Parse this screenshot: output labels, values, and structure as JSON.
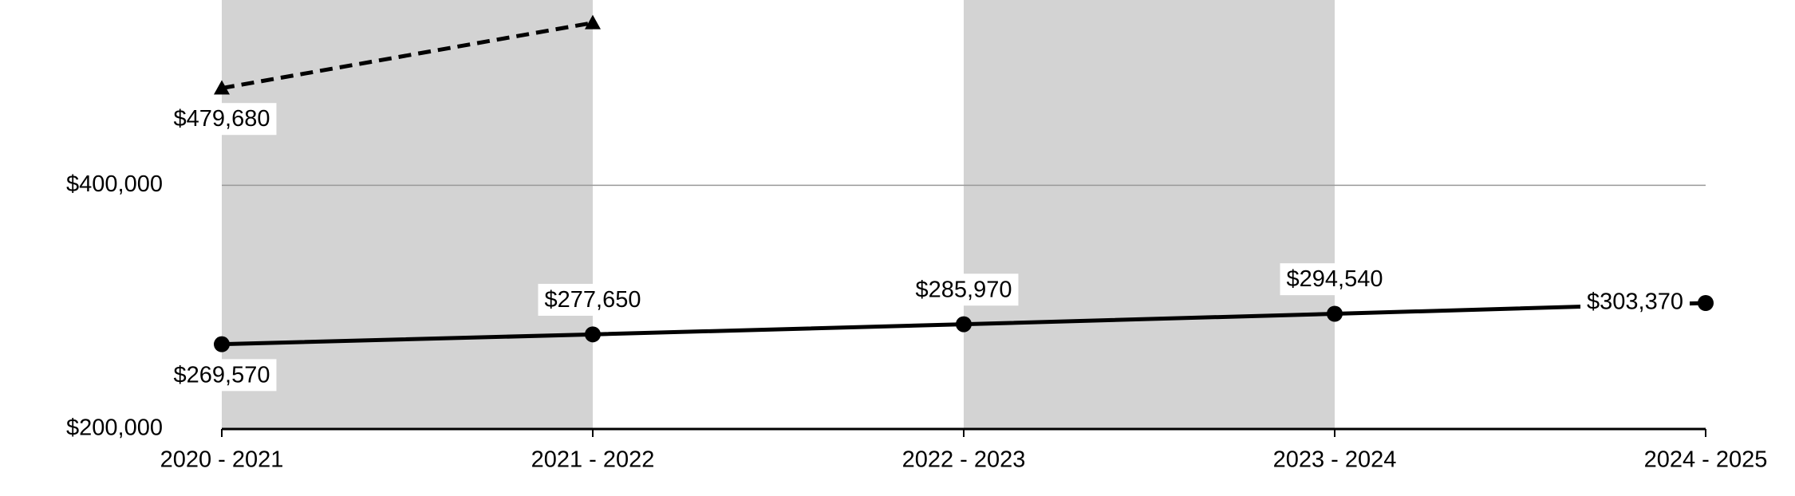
{
  "chart_data": {
    "type": "line",
    "categories": [
      "2020 - 2021",
      "2021 - 2022",
      "2022 - 2023",
      "2023 - 2024",
      "2024 - 2025"
    ],
    "series": [
      {
        "color": "#000000",
        "line_style": "dashed",
        "marker": "triangle",
        "values": [
          479680,
          533300,
          null,
          null,
          null
        ],
        "value_labels": [
          "$479,680",
          null,
          null,
          null,
          null
        ]
      },
      {
        "color": "#000000",
        "line_style": "solid",
        "marker": "circle",
        "values": [
          269570,
          277650,
          285970,
          294540,
          303370
        ],
        "value_labels": [
          "$269,570",
          "$277,650",
          "$285,970",
          "$294,540",
          "$303,370"
        ]
      }
    ],
    "ylim": [
      200000,
      552000
    ],
    "yticks": [
      {
        "value": 200000,
        "label": "$200,000"
      },
      {
        "value": 400000,
        "label": "$400,000"
      }
    ],
    "grid": true,
    "band_color": "#d3d3d3"
  }
}
